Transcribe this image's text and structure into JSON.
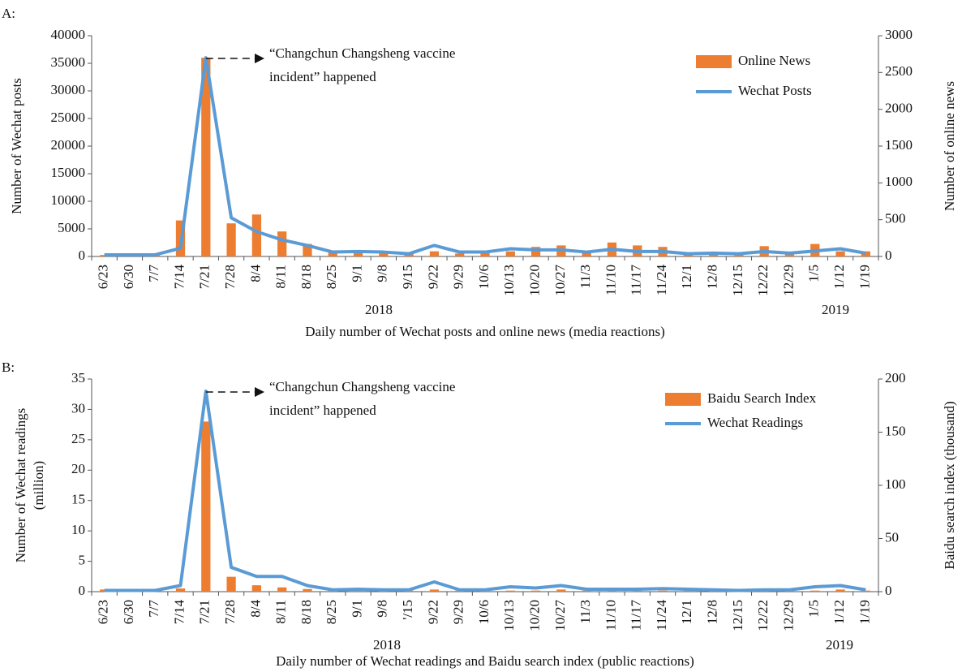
{
  "chart_data": [
    {
      "type": "combo",
      "panel_label": "A:",
      "x_label": "Daily number of Wechat posts and online news (media reactions)",
      "y_label": "Number of Wechat posts",
      "y2_label": "Number of online news",
      "year_labels": [
        "2018",
        "2019"
      ],
      "annotation": [
        "“Changchun Changsheng vaccine",
        "incident” happened"
      ],
      "categories": [
        "6/23",
        "6/30",
        "7/7",
        "7/14",
        "7/21",
        "7/28",
        "8/4",
        "8/11",
        "8/18",
        "8/25",
        "9/1",
        "9/8",
        "9/15",
        "9/22",
        "9/29",
        "10/6",
        "10/13",
        "10/20",
        "10/27",
        "11/3",
        "11/10",
        "11/17",
        "11/24",
        "12/1",
        "12/8",
        "12/15",
        "12/22",
        "12/29",
        "1/5",
        "1/12",
        "1/19"
      ],
      "ylim": [
        0,
        40000
      ],
      "yticks": [
        0,
        5000,
        10000,
        15000,
        20000,
        25000,
        30000,
        35000,
        40000
      ],
      "y2lim": [
        0,
        3000
      ],
      "y2ticks": [
        0,
        500,
        1000,
        1500,
        2000,
        2500,
        3000
      ],
      "legend": "upper right",
      "series": [
        {
          "name": "Online News",
          "kind": "bar",
          "axis": "y2",
          "color": "#ed7d31",
          "values": [
            20,
            20,
            20,
            490,
            2700,
            450,
            570,
            340,
            170,
            60,
            80,
            70,
            40,
            70,
            40,
            50,
            70,
            130,
            150,
            70,
            190,
            150,
            130,
            40,
            40,
            40,
            140,
            50,
            170,
            70,
            70
          ]
        },
        {
          "name": "Wechat Posts",
          "kind": "line",
          "color": "#5b9bd5",
          "values": [
            300,
            300,
            300,
            1500,
            36000,
            7000,
            4500,
            3000,
            2000,
            800,
            900,
            800,
            500,
            2000,
            800,
            800,
            1400,
            1200,
            1200,
            800,
            1300,
            900,
            900,
            500,
            600,
            500,
            900,
            600,
            1000,
            1400,
            600
          ]
        }
      ]
    },
    {
      "type": "combo",
      "panel_label": "B:",
      "x_label": "Daily number of Wechat readings and Baidu search index (public reactions)",
      "y_label": [
        "Number of Wechat readings",
        "(million)"
      ],
      "y2_label": "Baidu search index (thousand)",
      "year_labels": [
        "2018",
        "2019"
      ],
      "annotation": [
        "“Changchun Changsheng vaccine",
        "incident” happened"
      ],
      "categories": [
        "6/23",
        "6/30",
        "7/7",
        "7/14",
        "7/21",
        "7/28",
        "8/4",
        "8/11",
        "8/18",
        "8/25",
        "9/1",
        "9/8",
        "'/15",
        "9/22",
        "9/29",
        "10/6",
        "10/13",
        "10/20",
        "10/27",
        "11/3",
        "11/10",
        "11/17",
        "11/24",
        "12/1",
        "12/8",
        "12/15",
        "12/22",
        "12/29",
        "1/5",
        "1/12",
        "1/19"
      ],
      "ylim": [
        0,
        35
      ],
      "yticks": [
        0,
        5,
        10,
        15,
        20,
        25,
        30,
        35
      ],
      "y2lim": [
        0,
        200
      ],
      "y2ticks": [
        0,
        50,
        100,
        150,
        200
      ],
      "legend": "upper right",
      "series": [
        {
          "name": "Baidu Search Index",
          "kind": "bar",
          "axis": "y2",
          "color": "#ed7d31",
          "values": [
            2,
            2,
            1,
            3,
            160,
            14,
            6,
            4,
            2.5,
            1,
            1,
            1,
            1,
            2,
            1,
            1,
            1,
            1,
            2,
            1,
            1,
            1,
            1,
            1,
            1,
            1,
            1,
            1,
            1,
            2,
            1
          ]
        },
        {
          "name": "Wechat Readings",
          "kind": "line",
          "color": "#5b9bd5",
          "values": [
            0.2,
            0.2,
            0.2,
            1,
            33,
            4,
            2.5,
            2.5,
            1,
            0.3,
            0.4,
            0.3,
            0.3,
            1.6,
            0.3,
            0.3,
            0.8,
            0.6,
            1,
            0.4,
            0.4,
            0.4,
            0.5,
            0.4,
            0.3,
            0.2,
            0.3,
            0.3,
            0.8,
            1,
            0.3
          ]
        }
      ]
    }
  ]
}
